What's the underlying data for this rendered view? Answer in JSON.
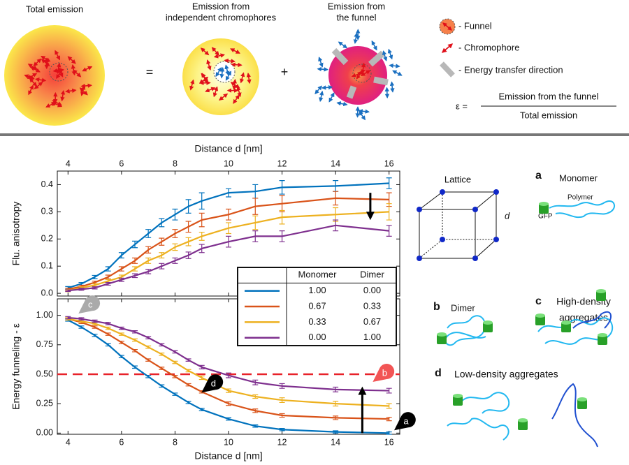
{
  "diagram": {
    "total_title": "Total emission",
    "equals": "=",
    "independent_title": [
      "Emission from",
      "independent chromophores"
    ],
    "plus": "+",
    "funnel_title": [
      "Emission from",
      "the funnel"
    ],
    "legend": [
      "- Funnel",
      "- Chromophore",
      "- Energy transfer direction"
    ],
    "equation": {
      "lhs": "ε =",
      "numerator": "Emission from the funnel",
      "denominator": "Total emission"
    }
  },
  "chart_data": [
    {
      "type": "line",
      "x": [
        4,
        4.5,
        5,
        5.5,
        6,
        6.5,
        7,
        7.5,
        8,
        8.5,
        9,
        10,
        11,
        12,
        14,
        16
      ],
      "xlim": [
        3.6,
        16.4
      ],
      "xticks": [
        4,
        6,
        8,
        10,
        12,
        14,
        16
      ],
      "xlabel": "Distance d [nm]",
      "xaxis_side": "top",
      "ylabel": "Flu. anisotropy",
      "ylim": [
        -0.01,
        0.45
      ],
      "yticks": [
        {
          "value": 0,
          "label": "0.0"
        },
        0.1,
        0.2,
        0.3,
        0.4
      ],
      "series": [
        {
          "color": "#0072bd",
          "values": [
            0.02,
            0.035,
            0.06,
            0.09,
            0.14,
            0.18,
            0.22,
            0.26,
            0.29,
            0.32,
            0.34,
            0.37,
            0.375,
            0.39,
            0.395,
            0.405
          ],
          "errors": [
            0.005,
            0.005,
            0.006,
            0.008,
            0.01,
            0.012,
            0.015,
            0.015,
            0.02,
            0.025,
            0.03,
            0.015,
            0.025,
            0.025,
            0.02,
            0.02
          ]
        },
        {
          "color": "#d95319",
          "values": [
            0.015,
            0.025,
            0.04,
            0.06,
            0.09,
            0.12,
            0.16,
            0.19,
            0.22,
            0.245,
            0.27,
            0.29,
            0.32,
            0.33,
            0.35,
            0.345
          ],
          "errors": [
            0.004,
            0.005,
            0.005,
            0.007,
            0.008,
            0.01,
            0.012,
            0.013,
            0.015,
            0.02,
            0.025,
            0.02,
            0.03,
            0.03,
            0.025,
            0.025
          ]
        },
        {
          "color": "#edb120",
          "values": [
            0.01,
            0.02,
            0.03,
            0.045,
            0.06,
            0.09,
            0.12,
            0.14,
            0.17,
            0.19,
            0.21,
            0.24,
            0.26,
            0.28,
            0.29,
            0.3
          ],
          "errors": [
            0.004,
            0.004,
            0.005,
            0.006,
            0.007,
            0.008,
            0.01,
            0.01,
            0.012,
            0.015,
            0.015,
            0.02,
            0.025,
            0.025,
            0.025,
            0.03
          ]
        },
        {
          "color": "#7e2f8e",
          "values": [
            0.01,
            0.015,
            0.02,
            0.035,
            0.05,
            0.065,
            0.08,
            0.1,
            0.12,
            0.14,
            0.165,
            0.19,
            0.21,
            0.21,
            0.25,
            0.23
          ],
          "errors": [
            0.003,
            0.004,
            0.004,
            0.005,
            0.006,
            0.007,
            0.008,
            0.01,
            0.01,
            0.012,
            0.015,
            0.02,
            0.02,
            0.02,
            0.02,
            0.02
          ]
        }
      ]
    },
    {
      "type": "line",
      "x": [
        4,
        4.5,
        5,
        5.5,
        6,
        6.5,
        7,
        7.5,
        8,
        8.5,
        9,
        10,
        11,
        12,
        14,
        16
      ],
      "xlim": [
        3.6,
        16.4
      ],
      "xticks": [
        4,
        6,
        8,
        10,
        12,
        14,
        16
      ],
      "xlabel": "Distance d [nm]",
      "xaxis_side": "bottom",
      "ylabel": "Energy funneling - ε",
      "ylim": [
        -0.01,
        1.14
      ],
      "yticks": [
        {
          "value": 0,
          "label": "0.00"
        },
        0.25,
        {
          "value": 0.5,
          "label": "0.50"
        },
        0.75,
        {
          "value": 1,
          "label": "1.00"
        }
      ],
      "hline": {
        "value": 0.5,
        "color": "#e8222a"
      },
      "series": [
        {
          "color": "#0072bd",
          "values": [
            0.96,
            0.9,
            0.83,
            0.75,
            0.65,
            0.56,
            0.48,
            0.4,
            0.33,
            0.26,
            0.2,
            0.12,
            0.06,
            0.03,
            0.01,
            0.0
          ],
          "errors": [
            0.01,
            0.01,
            0.01,
            0.01,
            0.01,
            0.01,
            0.01,
            0.01,
            0.01,
            0.01,
            0.01,
            0.01,
            0.01,
            0.01,
            0.01,
            0.01
          ]
        },
        {
          "color": "#d95319",
          "values": [
            0.97,
            0.94,
            0.9,
            0.84,
            0.77,
            0.7,
            0.62,
            0.55,
            0.48,
            0.41,
            0.35,
            0.25,
            0.19,
            0.15,
            0.13,
            0.12
          ],
          "errors": [
            0.01,
            0.01,
            0.01,
            0.01,
            0.01,
            0.01,
            0.01,
            0.01,
            0.01,
            0.01,
            0.01,
            0.015,
            0.015,
            0.015,
            0.015,
            0.015
          ]
        },
        {
          "color": "#edb120",
          "values": [
            0.97,
            0.95,
            0.93,
            0.89,
            0.84,
            0.79,
            0.73,
            0.67,
            0.6,
            0.53,
            0.47,
            0.36,
            0.31,
            0.28,
            0.25,
            0.23
          ],
          "errors": [
            0.01,
            0.01,
            0.01,
            0.01,
            0.01,
            0.01,
            0.01,
            0.01,
            0.01,
            0.01,
            0.015,
            0.015,
            0.015,
            0.02,
            0.02,
            0.02
          ]
        },
        {
          "color": "#7e2f8e",
          "values": [
            0.98,
            0.97,
            0.95,
            0.93,
            0.89,
            0.86,
            0.81,
            0.75,
            0.69,
            0.62,
            0.56,
            0.49,
            0.43,
            0.4,
            0.37,
            0.36
          ],
          "errors": [
            0.01,
            0.01,
            0.01,
            0.01,
            0.01,
            0.01,
            0.01,
            0.01,
            0.01,
            0.01,
            0.015,
            0.02,
            0.02,
            0.02,
            0.02,
            0.02
          ]
        }
      ],
      "markers": [
        "c",
        "d",
        "b",
        "a"
      ]
    }
  ],
  "legend_table": {
    "headers": [
      "Monomer",
      "Dimer"
    ],
    "rows": [
      [
        "1.00",
        "0.00"
      ],
      [
        "0.67",
        "0.33"
      ],
      [
        "0.33",
        "0.67"
      ],
      [
        "0.00",
        "1.00"
      ]
    ]
  },
  "panels": {
    "lattice": {
      "title": "Lattice",
      "edge": "d"
    },
    "a": {
      "letter": "a",
      "title": "Monomer",
      "polymer": "Polymer",
      "gfp": "GFP"
    },
    "b": {
      "letter": "b",
      "title": "Dimer"
    },
    "c": {
      "letter": "c",
      "title": [
        "High-density",
        "aggregates"
      ]
    },
    "d": {
      "letter": "d",
      "title": "Low-density aggregates"
    }
  }
}
